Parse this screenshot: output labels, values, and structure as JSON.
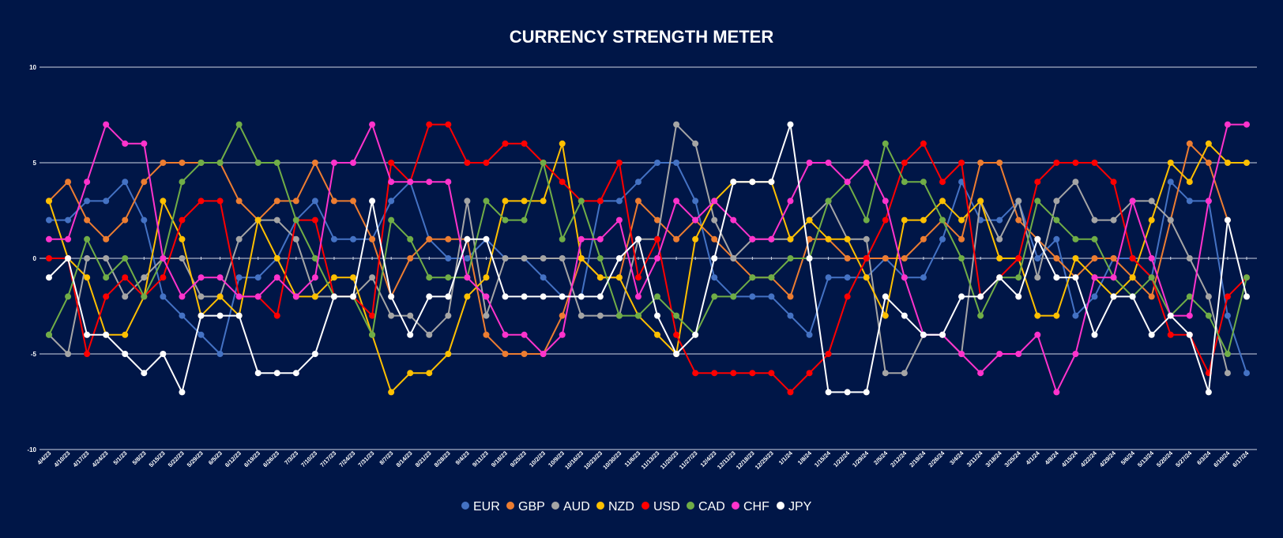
{
  "chart_data": {
    "type": "line",
    "title": "CURRENCY STRENGTH METER",
    "ylim": [
      -10,
      10
    ],
    "yticks": [
      10,
      5,
      0,
      -5,
      -10
    ],
    "grid": true,
    "legend_position": "bottom",
    "x": [
      "4/4/23",
      "4/10/23",
      "4/17/23",
      "4/24/23",
      "5/1/23",
      "5/8/23",
      "5/15/23",
      "5/22/23",
      "5/29/23",
      "6/5/23",
      "6/12/23",
      "6/19/23",
      "6/26/23",
      "7/3/23",
      "7/10/23",
      "7/17/23",
      "7/24/23",
      "7/31/23",
      "8/7/23",
      "8/14/23",
      "8/21/23",
      "8/28/23",
      "9/4/23",
      "9/11/23",
      "9/18/23",
      "9/25/23",
      "10/2/23",
      "10/9/23",
      "10/16/23",
      "10/23/23",
      "10/30/23",
      "11/6/23",
      "11/13/23",
      "11/20/23",
      "11/27/23",
      "12/4/23",
      "12/11/23",
      "12/18/23",
      "12/25/23",
      "1/1/24",
      "1/8/24",
      "1/15/24",
      "1/22/24",
      "1/29/24",
      "2/5/24",
      "2/12/24",
      "2/19/24",
      "2/26/24",
      "3/4/24",
      "3/11/24",
      "3/18/24",
      "3/25/24",
      "4/1/24",
      "4/8/24",
      "4/15/24",
      "4/22/24",
      "4/29/24",
      "5/6/24",
      "5/13/24",
      "5/20/24",
      "5/27/24",
      "6/3/24",
      "6/10/24",
      "6/17/24"
    ],
    "series": [
      {
        "name": "EUR",
        "color": "#4472c4",
        "values": [
          2,
          2,
          3,
          3,
          4,
          2,
          -2,
          -3,
          -4,
          -5,
          -1,
          -1,
          0,
          2,
          3,
          1,
          1,
          1,
          3,
          4,
          1,
          0,
          0,
          1,
          0,
          0,
          -1,
          -2,
          -2,
          3,
          3,
          4,
          5,
          5,
          3,
          -1,
          -2,
          -2,
          -2,
          -3,
          -4,
          -1,
          -1,
          -1,
          0,
          -1,
          -1,
          1,
          4,
          2,
          2,
          3,
          0,
          1,
          -3,
          -2,
          0,
          0,
          -1,
          4,
          3,
          3,
          -3,
          -6
        ]
      },
      {
        "name": "GBP",
        "color": "#ed7d31",
        "values": [
          3,
          4,
          2,
          1,
          2,
          4,
          5,
          5,
          5,
          5,
          3,
          2,
          3,
          3,
          5,
          3,
          3,
          1,
          -2,
          0,
          1,
          1,
          1,
          -4,
          -5,
          -5,
          -5,
          -3,
          0,
          -1,
          -1,
          3,
          2,
          1,
          2,
          1,
          0,
          -1,
          -1,
          -2,
          1,
          1,
          0,
          0,
          0,
          0,
          1,
          2,
          1,
          5,
          5,
          2,
          1,
          0,
          -1,
          0,
          0,
          -1,
          -2,
          2,
          6,
          5,
          2,
          null
        ]
      },
      {
        "name": "AUD",
        "color": "#a5a5a5",
        "values": [
          -4,
          -5,
          0,
          0,
          -2,
          -1,
          0,
          0,
          -2,
          -2,
          1,
          2,
          2,
          1,
          -2,
          -2,
          -2,
          -1,
          -3,
          -3,
          -4,
          -3,
          3,
          -3,
          0,
          0,
          0,
          0,
          -3,
          -3,
          -3,
          1,
          1,
          7,
          6,
          2,
          0,
          1,
          1,
          1,
          2,
          3,
          1,
          1,
          -6,
          -6,
          -4,
          -4,
          -5,
          3,
          1,
          3,
          -1,
          3,
          4,
          2,
          2,
          3,
          3,
          2,
          0,
          -2,
          -6,
          null
        ]
      },
      {
        "name": "NZD",
        "color": "#ffc000",
        "values": [
          3,
          0,
          -1,
          -4,
          -4,
          -2,
          3,
          1,
          -3,
          -2,
          -3,
          2,
          0,
          -2,
          -2,
          -1,
          -1,
          -4,
          -7,
          -6,
          -6,
          -5,
          -2,
          -1,
          3,
          3,
          3,
          6,
          0,
          -1,
          -1,
          -3,
          -4,
          -5,
          1,
          3,
          4,
          4,
          4,
          1,
          2,
          1,
          1,
          -1,
          -3,
          2,
          2,
          3,
          2,
          3,
          0,
          0,
          -3,
          -3,
          0,
          -1,
          -2,
          -1,
          2,
          5,
          4,
          6,
          5,
          5
        ]
      },
      {
        "name": "USD",
        "color": "#ff0000",
        "values": [
          0,
          0,
          -5,
          -2,
          -1,
          -2,
          -1,
          2,
          3,
          3,
          -2,
          -2,
          -3,
          2,
          2,
          -2,
          -2,
          -3,
          5,
          4,
          7,
          7,
          5,
          5,
          6,
          6,
          5,
          4,
          3,
          3,
          5,
          -1,
          1,
          -4,
          -6,
          -6,
          -6,
          -6,
          -6,
          -7,
          -6,
          -5,
          -2,
          0,
          2,
          5,
          6,
          4,
          5,
          -2,
          -1,
          0,
          4,
          5,
          5,
          5,
          4,
          0,
          -1,
          -4,
          -4,
          -6,
          -2,
          -1
        ]
      },
      {
        "name": "CAD",
        "color": "#70ad47",
        "values": [
          -4,
          -2,
          1,
          -1,
          0,
          -2,
          0,
          4,
          5,
          5,
          7,
          5,
          5,
          2,
          0,
          -2,
          -2,
          -4,
          2,
          1,
          -1,
          -1,
          -1,
          3,
          2,
          2,
          5,
          1,
          3,
          0,
          -3,
          -3,
          -2,
          -3,
          -4,
          -2,
          -2,
          -1,
          -1,
          0,
          0,
          3,
          4,
          2,
          6,
          4,
          4,
          2,
          0,
          -3,
          -1,
          -1,
          3,
          2,
          1,
          1,
          -1,
          -2,
          -1,
          -3,
          -2,
          -3,
          -5,
          -1
        ]
      },
      {
        "name": "CHF",
        "color": "#ff33cc",
        "values": [
          1,
          1,
          4,
          7,
          6,
          6,
          0,
          -2,
          -1,
          -1,
          -2,
          -2,
          -1,
          -2,
          -1,
          5,
          5,
          7,
          4,
          4,
          4,
          4,
          -1,
          -2,
          -4,
          -4,
          -5,
          -4,
          1,
          1,
          2,
          -2,
          0,
          3,
          2,
          3,
          2,
          1,
          1,
          3,
          5,
          5,
          4,
          5,
          3,
          -1,
          -4,
          -4,
          -5,
          -6,
          -5,
          -5,
          -4,
          -7,
          -5,
          -1,
          -1,
          3,
          0,
          -3,
          -3,
          3,
          7,
          7
        ]
      },
      {
        "name": "JPY",
        "color": "#ffffff",
        "values": [
          -1,
          0,
          -4,
          -4,
          -5,
          -6,
          -5,
          -7,
          -3,
          -3,
          -3,
          -6,
          -6,
          -6,
          -5,
          -2,
          -2,
          3,
          -2,
          -4,
          -2,
          -2,
          1,
          1,
          -2,
          -2,
          -2,
          -2,
          -2,
          -2,
          0,
          1,
          -3,
          -5,
          -4,
          0,
          4,
          4,
          4,
          7,
          0,
          -7,
          -7,
          -7,
          -2,
          -3,
          -4,
          -4,
          -2,
          -2,
          -1,
          -2,
          1,
          -1,
          -1,
          -4,
          -2,
          -2,
          -4,
          -3,
          -4,
          -7,
          2,
          -2
        ]
      }
    ]
  }
}
